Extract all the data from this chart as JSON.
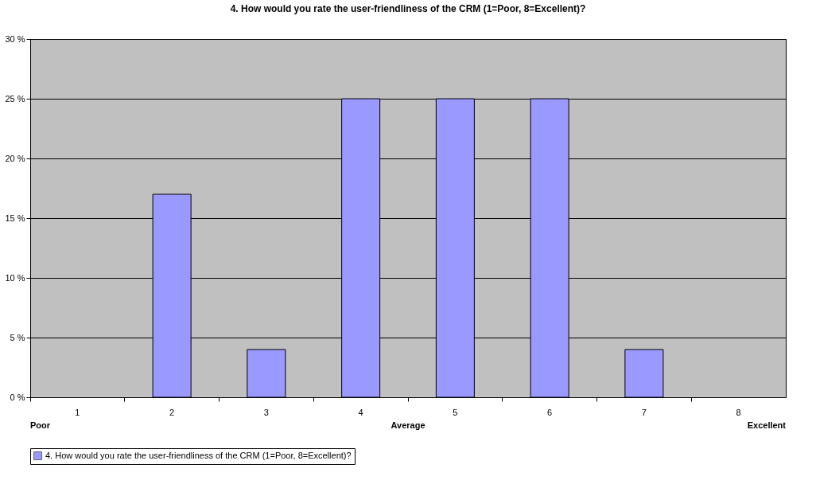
{
  "chart_data": {
    "type": "bar",
    "title": "4. How would you rate the user-friendliness of the CRM (1=Poor, 8=Excellent)?",
    "categories": [
      "1",
      "2",
      "3",
      "4",
      "5",
      "6",
      "7",
      "8"
    ],
    "series": [
      {
        "name": "4. How would you rate the user-friendliness of the CRM (1=Poor, 8=Excellent)?",
        "color": "#9999ff",
        "values": [
          0,
          17,
          4,
          25,
          25,
          25,
          4,
          0
        ]
      }
    ],
    "ylim": [
      0,
      30
    ],
    "yticks": [
      {
        "value": 0,
        "label": "0 %"
      },
      {
        "value": 5,
        "label": "5 %"
      },
      {
        "value": 10,
        "label": "10 %"
      },
      {
        "value": 15,
        "label": "15 %"
      },
      {
        "value": 20,
        "label": "20 %"
      },
      {
        "value": 25,
        "label": "25 %"
      },
      {
        "value": 30,
        "label": "30 %"
      }
    ],
    "grid": "y",
    "legend": "bottom",
    "annotations": [
      "Poor",
      "Average",
      "Excellent"
    ]
  }
}
